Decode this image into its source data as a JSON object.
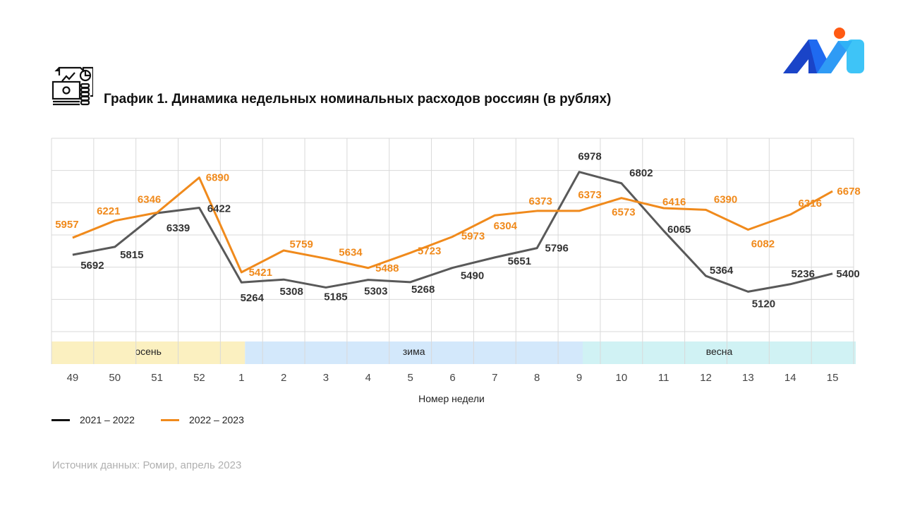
{
  "header": {
    "title": "График 1. Динамика недельных номинальных расходов россиян (в рублях)",
    "icon": "finance-report-icon",
    "logo": "brand-logo"
  },
  "chart_data": {
    "type": "line",
    "title": "График 1. Динамика недельных номинальных расходов россиян (в рублях)",
    "xlabel": "Номер недели",
    "ylabel": "",
    "ylim": [
      4500,
      7500
    ],
    "grid": true,
    "categories": [
      "49",
      "50",
      "51",
      "52",
      "1",
      "2",
      "3",
      "4",
      "5",
      "6",
      "7",
      "8",
      "9",
      "10",
      "11",
      "12",
      "13",
      "14",
      "15"
    ],
    "series": [
      {
        "name": "2021 – 2022",
        "color": "#595959",
        "values": [
          5692,
          5815,
          6339,
          6422,
          5264,
          5308,
          5185,
          5303,
          5268,
          5490,
          5651,
          5796,
          6978,
          6802,
          6065,
          5364,
          5120,
          5236,
          5400
        ]
      },
      {
        "name": "2022 – 2023",
        "color": "#f08a1c",
        "values": [
          5957,
          6221,
          6346,
          6890,
          5421,
          5759,
          5634,
          5488,
          5723,
          5973,
          6304,
          6373,
          6373,
          6573,
          6416,
          6390,
          6082,
          6316,
          6678
        ]
      }
    ],
    "seasons": [
      {
        "label": "осень",
        "from": "49",
        "to": "1",
        "color": "#fbf0c0"
      },
      {
        "label": "зима",
        "from": "1",
        "to": "9",
        "color": "#d3e8fb"
      },
      {
        "label": "весна",
        "from": "9",
        "to": "15",
        "color": "#d0f2f4"
      }
    ],
    "legend_position": "bottom-left"
  },
  "footer": {
    "source": "Источник данных: Ромир, апрель 2023"
  }
}
